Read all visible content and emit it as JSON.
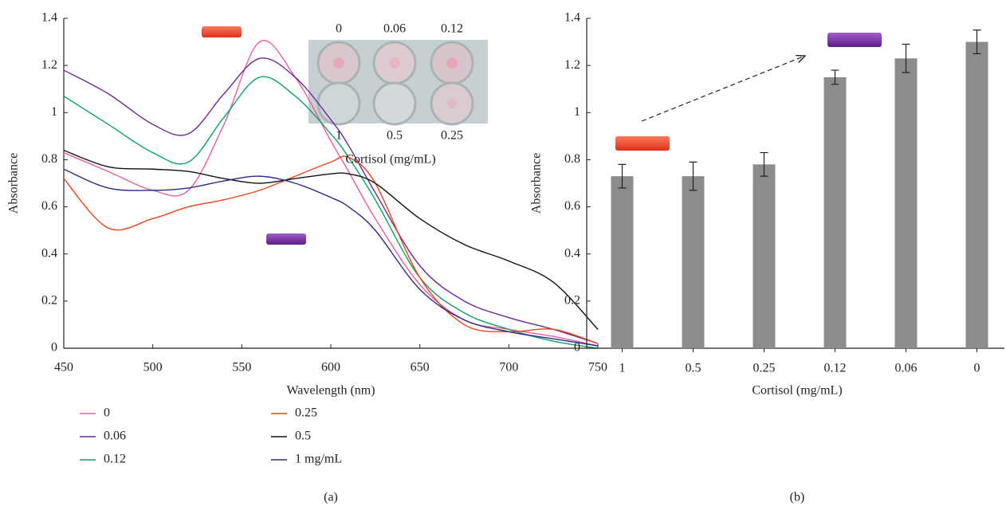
{
  "chart_data": [
    {
      "type": "line",
      "xlabel": "Wavelength (nm)",
      "ylabel": "Absorbance",
      "caption": "(a)",
      "x": [
        450,
        475,
        500,
        520,
        540,
        560,
        580,
        600,
        610,
        625,
        650,
        675,
        700,
        725,
        750
      ],
      "series": [
        {
          "name": "0",
          "color": "#e8609e",
          "values": [
            0.83,
            0.75,
            0.67,
            0.67,
            0.95,
            1.3,
            1.15,
            0.88,
            0.75,
            0.55,
            0.27,
            0.12,
            0.08,
            0.05,
            0.01
          ]
        },
        {
          "name": "0.06",
          "color": "#6a2a96",
          "values": [
            1.18,
            1.08,
            0.95,
            0.91,
            1.08,
            1.23,
            1.15,
            0.97,
            0.86,
            0.66,
            0.35,
            0.2,
            0.13,
            0.08,
            0.02
          ]
        },
        {
          "name": "0.12",
          "color": "#10a060",
          "values": [
            1.07,
            0.95,
            0.83,
            0.79,
            0.98,
            1.15,
            1.07,
            0.91,
            0.81,
            0.63,
            0.3,
            0.15,
            0.08,
            0.03,
            0.0
          ]
        },
        {
          "name": "0.25",
          "color": "#e8461e",
          "values": [
            0.72,
            0.51,
            0.55,
            0.6,
            0.63,
            0.67,
            0.73,
            0.79,
            0.81,
            0.7,
            0.3,
            0.1,
            0.07,
            0.08,
            0.02
          ]
        },
        {
          "name": "0.5",
          "color": "#111111",
          "values": [
            0.84,
            0.77,
            0.76,
            0.75,
            0.72,
            0.7,
            0.72,
            0.74,
            0.74,
            0.7,
            0.55,
            0.44,
            0.37,
            0.28,
            0.08
          ]
        },
        {
          "name": "1 mg/mL",
          "color": "#2a2a8a",
          "values": [
            0.76,
            0.68,
            0.67,
            0.68,
            0.71,
            0.73,
            0.7,
            0.64,
            0.6,
            0.5,
            0.25,
            0.12,
            0.07,
            0.04,
            0.01
          ]
        }
      ],
      "xlim": [
        450,
        750
      ],
      "xticks": [
        450,
        500,
        550,
        600,
        650,
        700,
        750
      ],
      "ylim": [
        0,
        1.4
      ],
      "yticks": [
        0,
        0.2,
        0.4,
        0.6,
        0.8,
        1,
        1.2,
        1.4
      ],
      "inset_labels": {
        "top": [
          "0",
          "0.06",
          "0.12"
        ],
        "bottom": [
          "1",
          "0.5",
          "0.25"
        ],
        "title": "Cortisol (mg/mL)"
      }
    },
    {
      "type": "bar",
      "xlabel": "Cortisol (mg/mL)",
      "ylabel": "Absorbance",
      "caption": "(b)",
      "categories": [
        "1",
        "0.5",
        "0.25",
        "0.12",
        "0.06",
        "0"
      ],
      "values": [
        0.73,
        0.73,
        0.78,
        1.15,
        1.23,
        1.3
      ],
      "errors": [
        0.05,
        0.06,
        0.05,
        0.03,
        0.06,
        0.05
      ],
      "color": "#8c8c8c",
      "ylim": [
        0,
        1.4
      ],
      "yticks": [
        0,
        0.2,
        0.4,
        0.6,
        0.8,
        1,
        1.2,
        1.4
      ]
    }
  ]
}
